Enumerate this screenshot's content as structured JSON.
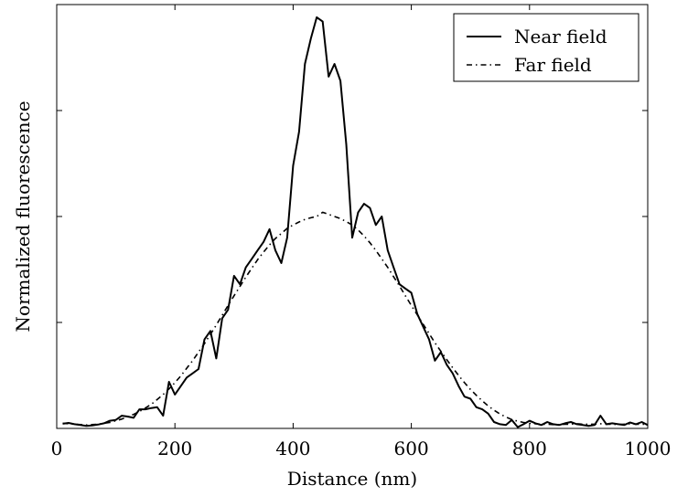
{
  "chart_data": {
    "type": "line",
    "title": "",
    "xlabel": "Distance (nm)",
    "ylabel": "Normalized fluorescence",
    "xlim": [
      0,
      1000
    ],
    "ylim": [
      0,
      1
    ],
    "x_ticks": [
      0,
      200,
      400,
      600,
      800,
      1000
    ],
    "x_tick_labels": [
      "0",
      "200",
      "400",
      "600",
      "800",
      "1000"
    ],
    "y_ticks": [
      0.25,
      0.5,
      0.75
    ],
    "y_tick_labels_shown": false,
    "grid": false,
    "legend_position": "top-right",
    "series": [
      {
        "name": "Near field",
        "style": "solid",
        "color": "#000000",
        "x": [
          10,
          20,
          30,
          40,
          50,
          60,
          70,
          80,
          90,
          100,
          110,
          120,
          130,
          140,
          150,
          160,
          170,
          180,
          190,
          200,
          210,
          220,
          230,
          240,
          250,
          260,
          270,
          280,
          290,
          300,
          310,
          320,
          330,
          340,
          350,
          360,
          370,
          380,
          390,
          400,
          410,
          420,
          430,
          440,
          450,
          460,
          470,
          480,
          490,
          500,
          510,
          520,
          530,
          540,
          550,
          560,
          570,
          580,
          590,
          600,
          610,
          620,
          630,
          640,
          650,
          660,
          670,
          680,
          690,
          700,
          710,
          720,
          730,
          740,
          750,
          760,
          770,
          780,
          790,
          800,
          810,
          820,
          830,
          840,
          850,
          860,
          870,
          880,
          890,
          900,
          910,
          920,
          930,
          940,
          950,
          960,
          970,
          980,
          990,
          1000
        ],
        "y": [
          0.011,
          0.013,
          0.01,
          0.008,
          0.006,
          0.007,
          0.009,
          0.012,
          0.018,
          0.02,
          0.03,
          0.028,
          0.025,
          0.045,
          0.045,
          0.048,
          0.05,
          0.03,
          0.11,
          0.08,
          0.1,
          0.12,
          0.13,
          0.14,
          0.21,
          0.23,
          0.165,
          0.26,
          0.28,
          0.36,
          0.34,
          0.38,
          0.4,
          0.42,
          0.44,
          0.47,
          0.42,
          0.39,
          0.45,
          0.62,
          0.7,
          0.86,
          0.92,
          0.97,
          0.96,
          0.83,
          0.86,
          0.82,
          0.67,
          0.45,
          0.51,
          0.53,
          0.52,
          0.48,
          0.5,
          0.42,
          0.38,
          0.34,
          0.33,
          0.32,
          0.27,
          0.24,
          0.21,
          0.16,
          0.18,
          0.15,
          0.13,
          0.1,
          0.075,
          0.07,
          0.05,
          0.045,
          0.035,
          0.015,
          0.01,
          0.008,
          0.02,
          0.003,
          0.01,
          0.018,
          0.012,
          0.008,
          0.015,
          0.01,
          0.008,
          0.012,
          0.015,
          0.01,
          0.008,
          0.006,
          0.008,
          0.03,
          0.01,
          0.012,
          0.01,
          0.008,
          0.014,
          0.01,
          0.015,
          0.008
        ]
      },
      {
        "name": "Far field",
        "style": "dash-dot",
        "color": "#000000",
        "x": [
          10,
          20,
          30,
          40,
          50,
          60,
          70,
          80,
          90,
          100,
          110,
          120,
          130,
          140,
          150,
          160,
          170,
          180,
          190,
          200,
          210,
          220,
          230,
          240,
          250,
          260,
          270,
          280,
          290,
          300,
          310,
          320,
          330,
          340,
          350,
          360,
          370,
          380,
          390,
          400,
          410,
          420,
          430,
          440,
          450,
          460,
          470,
          480,
          490,
          500,
          510,
          520,
          530,
          540,
          550,
          560,
          570,
          580,
          590,
          600,
          610,
          620,
          630,
          640,
          650,
          660,
          670,
          680,
          690,
          700,
          710,
          720,
          730,
          740,
          750,
          760,
          770,
          780,
          790,
          800,
          810,
          820,
          830,
          840,
          850,
          860,
          870,
          880,
          890,
          900,
          910,
          920,
          930,
          940,
          950,
          960,
          970,
          980,
          990,
          1000
        ],
        "y": [
          0.012,
          0.011,
          0.01,
          0.009,
          0.008,
          0.009,
          0.01,
          0.012,
          0.014,
          0.018,
          0.022,
          0.027,
          0.033,
          0.04,
          0.048,
          0.057,
          0.068,
          0.08,
          0.093,
          0.108,
          0.124,
          0.142,
          0.16,
          0.18,
          0.2,
          0.222,
          0.244,
          0.267,
          0.29,
          0.313,
          0.335,
          0.357,
          0.378,
          0.398,
          0.416,
          0.433,
          0.448,
          0.46,
          0.472,
          0.48,
          0.487,
          0.493,
          0.497,
          0.5,
          0.51,
          0.505,
          0.5,
          0.495,
          0.488,
          0.48,
          0.468,
          0.454,
          0.438,
          0.42,
          0.4,
          0.38,
          0.358,
          0.336,
          0.313,
          0.29,
          0.268,
          0.246,
          0.224,
          0.202,
          0.182,
          0.162,
          0.143,
          0.125,
          0.108,
          0.092,
          0.078,
          0.065,
          0.053,
          0.043,
          0.034,
          0.027,
          0.021,
          0.017,
          0.014,
          0.012,
          0.011,
          0.01,
          0.01,
          0.009,
          0.009,
          0.01,
          0.01,
          0.011,
          0.01,
          0.01,
          0.01,
          0.011,
          0.01,
          0.01,
          0.009,
          0.01,
          0.011,
          0.01,
          0.01,
          0.01
        ]
      }
    ]
  }
}
